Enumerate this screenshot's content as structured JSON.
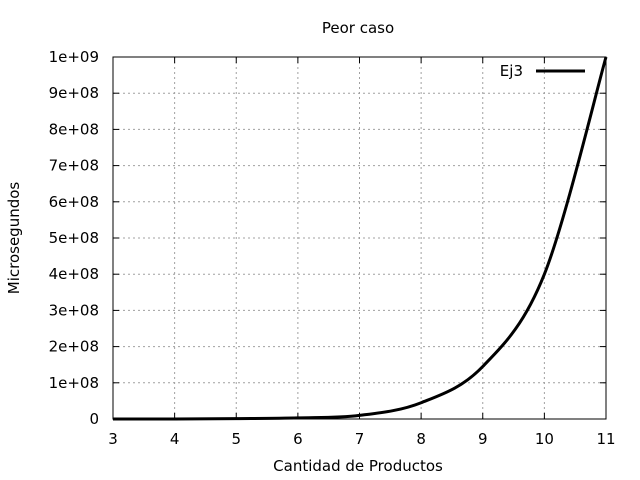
{
  "chart_data": {
    "type": "line",
    "title": "Peor caso",
    "xlabel": "Cantidad de Productos",
    "ylabel": "Microsegundos",
    "xlim": [
      3,
      11
    ],
    "ylim": [
      0,
      1000000000
    ],
    "xticks": [
      3,
      4,
      5,
      6,
      7,
      8,
      9,
      10,
      11
    ],
    "yticks": [
      0,
      100000000,
      200000000,
      300000000,
      400000000,
      500000000,
      600000000,
      700000000,
      800000000,
      900000000,
      1000000000
    ],
    "xtick_labels": [
      "3",
      "4",
      "5",
      "6",
      "7",
      "8",
      "9",
      "10",
      "11"
    ],
    "ytick_labels": [
      "0",
      "1e+08",
      "2e+08",
      "3e+08",
      "4e+08",
      "5e+08",
      "6e+08",
      "7e+08",
      "8e+08",
      "9e+08",
      "1e+09"
    ],
    "grid": true,
    "legend_position": "top-right",
    "series": [
      {
        "name": "Ej3",
        "color": "#000000",
        "x": [
          3,
          4,
          5,
          6,
          7,
          8,
          9,
          10,
          11
        ],
        "y": [
          10000,
          100000,
          1000000,
          3000000,
          10000000,
          45000000,
          145000000,
          400000000,
          1000000000
        ]
      }
    ]
  }
}
